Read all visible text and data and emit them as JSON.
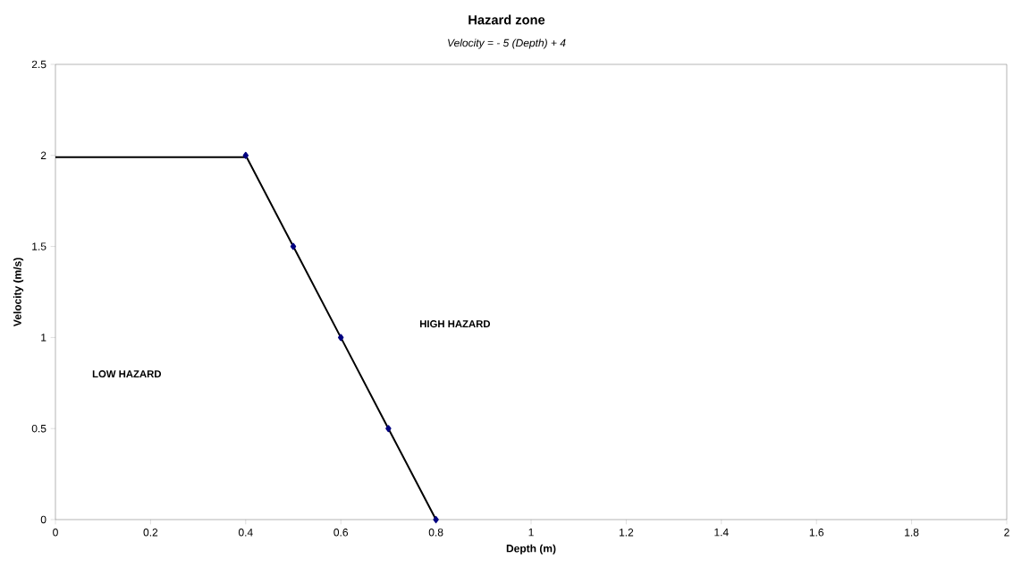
{
  "chart_data": {
    "type": "line",
    "title": "Hazard zone",
    "subtitle": "Velocity  = - 5 (Depth) + 4",
    "xlabel": "Depth (m)",
    "ylabel": "Velocity (m/s)",
    "series": [
      {
        "x": [
          0,
          0.4
        ],
        "values": [
          1.99,
          1.99
        ],
        "color": "#000000",
        "marker": "none"
      },
      {
        "x": [
          0.4,
          0.5,
          0.6,
          0.7,
          0.8
        ],
        "values": [
          2,
          1.5,
          1,
          0.5,
          0
        ],
        "color": "#000000",
        "marker": "diamond"
      }
    ],
    "xlim": [
      0,
      2
    ],
    "ylim": [
      0,
      2.5
    ],
    "xticks": [
      0,
      0.2,
      0.4,
      0.6,
      0.8,
      1,
      1.2,
      1.4,
      1.6,
      1.8,
      2
    ],
    "yticks": [
      0,
      0.5,
      1,
      1.5,
      2,
      2.5
    ],
    "grid": false,
    "line_style": "solid",
    "annotations": [
      "LOW HAZARD",
      "HIGH HAZARD"
    ]
  }
}
